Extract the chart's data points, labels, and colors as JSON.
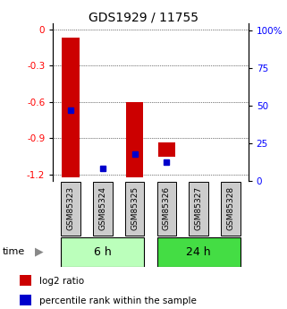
{
  "title": "GDS1929 / 11755",
  "samples": [
    "GSM85323",
    "GSM85324",
    "GSM85325",
    "GSM85326",
    "GSM85327",
    "GSM85328"
  ],
  "log2_ratio_bottom": [
    -1.22,
    -1.22,
    -1.22,
    -1.05,
    -1.22,
    -1.22
  ],
  "log2_ratio_top": [
    -0.07,
    -1.22,
    -0.6,
    -0.93,
    -1.22,
    -1.22
  ],
  "pct_rank_value": [
    45,
    8,
    17,
    12,
    0,
    0
  ],
  "ylim_left": [
    -1.25,
    0.05
  ],
  "ylim_right": [
    0,
    105
  ],
  "yticks_left": [
    0,
    -0.3,
    -0.6,
    -0.9,
    -1.2
  ],
  "yticks_right": [
    0,
    25,
    50,
    75,
    100
  ],
  "ytick_labels_left": [
    "0",
    "-0.3",
    "-0.6",
    "-0.9",
    "-1.2"
  ],
  "ytick_labels_right": [
    "0",
    "25",
    "50",
    "75",
    "100%"
  ],
  "time_groups": [
    {
      "label": "6 h",
      "indices": [
        0,
        1,
        2
      ],
      "color": "#bbffbb"
    },
    {
      "label": "24 h",
      "indices": [
        3,
        4,
        5
      ],
      "color": "#44dd44"
    }
  ],
  "bar_color": "#cc0000",
  "percentile_color": "#0000cc",
  "sample_bg_color": "#cccccc",
  "bar_width": 0.55,
  "title_fontsize": 10,
  "tick_fontsize": 7.5,
  "sample_fontsize": 6.5,
  "time_fontsize": 9,
  "legend_fontsize": 7.5
}
